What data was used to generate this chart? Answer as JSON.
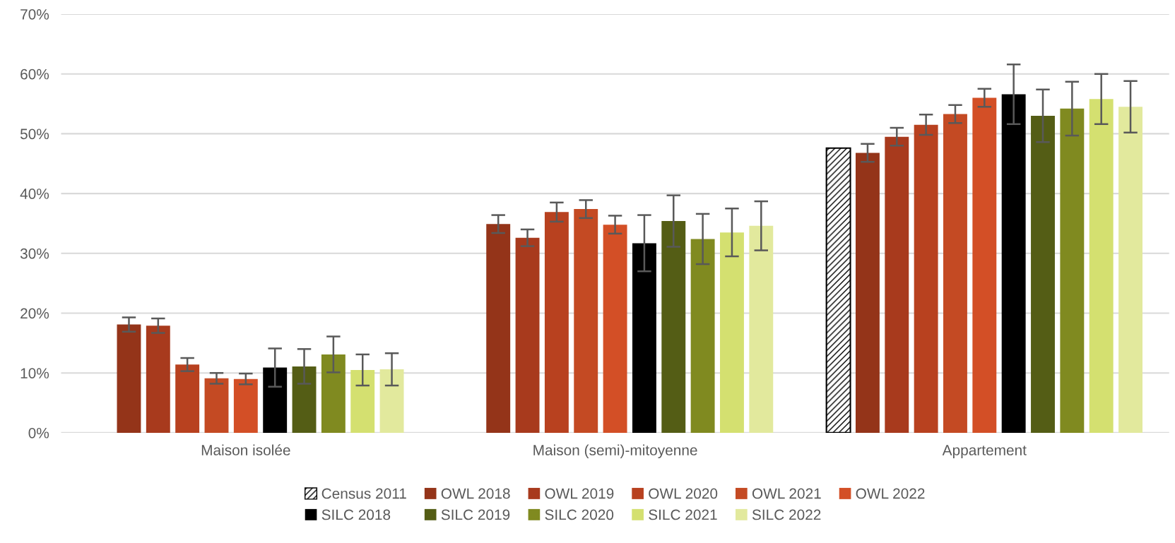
{
  "chart_data": {
    "type": "bar",
    "categories": [
      "Maison isolée",
      "Maison (semi)-mitoyenne",
      "Appartement"
    ],
    "ylim": [
      0,
      70
    ],
    "yticks": [
      {
        "value": 0,
        "label": "0%"
      },
      {
        "value": 10,
        "label": "10%"
      },
      {
        "value": 20,
        "label": "20%"
      },
      {
        "value": 30,
        "label": "30%"
      },
      {
        "value": 40,
        "label": "40%"
      },
      {
        "value": 50,
        "label": "50%"
      },
      {
        "value": 60,
        "label": "60%"
      },
      {
        "value": 70,
        "label": "70%"
      }
    ],
    "grid": "y",
    "legend": "bottom",
    "series": [
      {
        "name": "Census 2011",
        "color": "#000000",
        "values": [
          null,
          null,
          47.6
        ]
      },
      {
        "name": "OWL 2018",
        "color": "#943419",
        "values": [
          18.1,
          34.9,
          46.8
        ],
        "errors": [
          1.2,
          1.5,
          1.5
        ]
      },
      {
        "name": "OWL 2019",
        "color": "#a83a1d",
        "values": [
          17.9,
          32.6,
          49.5
        ],
        "errors": [
          1.2,
          1.4,
          1.5
        ]
      },
      {
        "name": "OWL 2020",
        "color": "#b8411f",
        "values": [
          11.4,
          36.9,
          51.5
        ],
        "errors": [
          1.1,
          1.6,
          1.7
        ]
      },
      {
        "name": "OWL 2021",
        "color": "#c44a23",
        "values": [
          9.1,
          37.4,
          53.3
        ],
        "errors": [
          0.9,
          1.5,
          1.5
        ]
      },
      {
        "name": "OWL 2022",
        "color": "#d34f26",
        "values": [
          9.0,
          34.8,
          56.0
        ],
        "errors": [
          0.9,
          1.5,
          1.5
        ]
      },
      {
        "name": "SILC 2018",
        "color": "#000000",
        "values": [
          10.9,
          31.7,
          56.6
        ],
        "errors": [
          3.2,
          4.7,
          5.0
        ]
      },
      {
        "name": "SILC 2019",
        "color": "#545d15",
        "values": [
          11.1,
          35.4,
          53.0
        ],
        "errors": [
          2.9,
          4.3,
          4.4
        ]
      },
      {
        "name": "SILC 2020",
        "color": "#808a20",
        "values": [
          13.1,
          32.4,
          54.2
        ],
        "errors": [
          3.0,
          4.2,
          4.5
        ]
      },
      {
        "name": "SILC 2021",
        "color": "#d4e070",
        "values": [
          10.5,
          33.5,
          55.8
        ],
        "errors": [
          2.6,
          4.0,
          4.2
        ]
      },
      {
        "name": "SILC 2022",
        "color": "#e2e99d",
        "values": [
          10.6,
          34.6,
          54.5
        ],
        "errors": [
          2.7,
          4.1,
          4.3
        ]
      }
    ]
  }
}
